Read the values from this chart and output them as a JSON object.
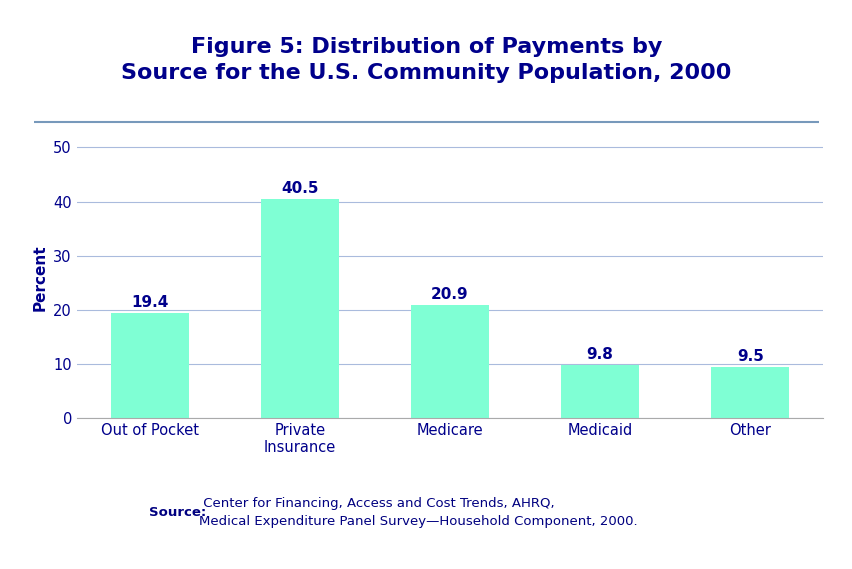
{
  "title_line1": "Figure 5: Distribution of Payments by",
  "title_line2": "Source for the U.S. Community Population, 2000",
  "title_color": "#00008B",
  "categories": [
    "Out of Pocket",
    "Private\nInsurance",
    "Medicare",
    "Medicaid",
    "Other"
  ],
  "values": [
    19.4,
    40.5,
    20.9,
    9.8,
    9.5
  ],
  "bar_color": "#7FFFD4",
  "bar_edge_color": "#7FFFD4",
  "label_color": "#00008B",
  "ylabel": "Percent",
  "ylabel_color": "#00008B",
  "yticks": [
    0,
    10,
    20,
    30,
    40,
    50
  ],
  "ylim": [
    0,
    52
  ],
  "tick_color": "#00008B",
  "grid_color": "#AABBDD",
  "background_color": "#FFFFFF",
  "source_bold": "Source:",
  "source_rest": " Center for Financing, Access and Cost Trends, AHRQ,\nMedical Expenditure Panel Survey—Household Component, 2000.",
  "source_color": "#000080",
  "sep_color": "#7799BB",
  "title_fontsize": 16,
  "label_fontsize": 11,
  "tick_fontsize": 10.5,
  "ylabel_fontsize": 11,
  "source_fontsize": 9.5
}
